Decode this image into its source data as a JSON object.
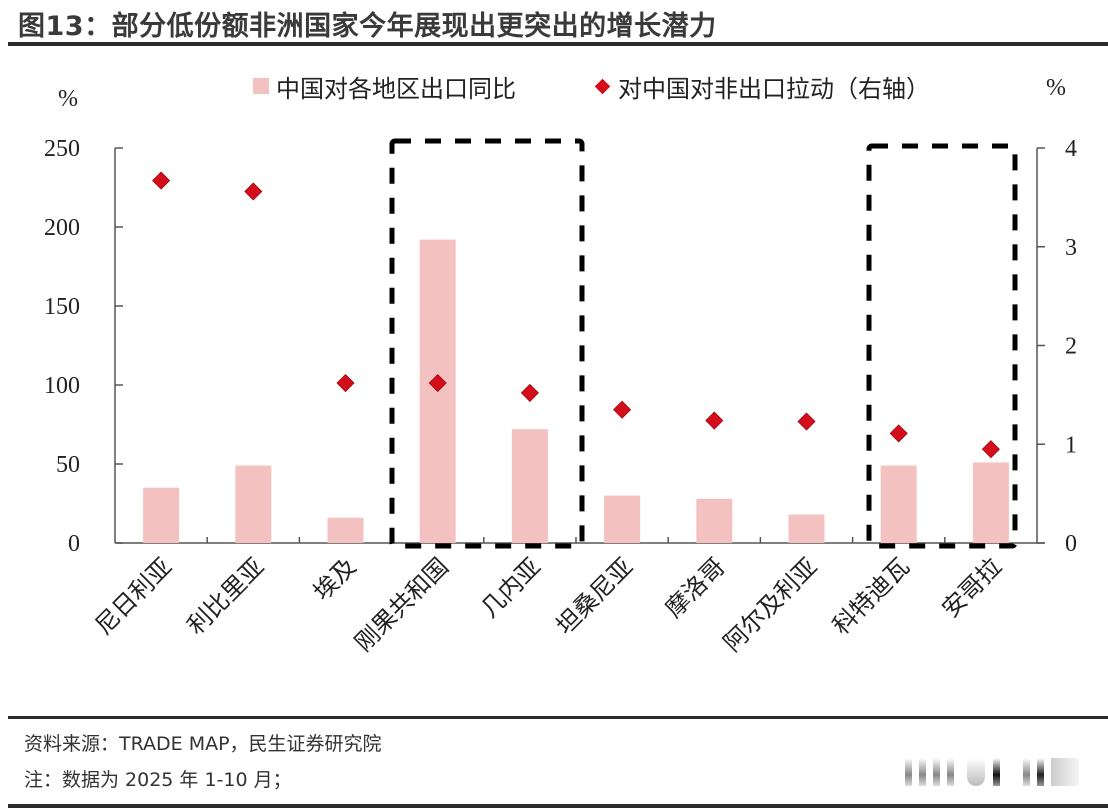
{
  "header": {
    "title": "图13：部分低份额非洲国家今年展现出更突出的增长潜力"
  },
  "legend": {
    "bar_label": "中国对各地区出口同比",
    "marker_label": "对中国对非出口拉动（右轴）",
    "bar_color": "#f4c1c1",
    "marker_color": "#d30e1a"
  },
  "axes": {
    "left_unit": "%",
    "right_unit": "%",
    "left_ticks": [
      "0",
      "50",
      "100",
      "150",
      "200",
      "250"
    ],
    "right_ticks": [
      "0",
      "1",
      "2",
      "3",
      "4"
    ]
  },
  "chart_data": {
    "type": "bar",
    "title": "部分低份额非洲国家今年展现出更突出的增长潜力",
    "categories": [
      "尼日利亚",
      "利比里亚",
      "埃及",
      "刚果共和国",
      "几内亚",
      "坦桑尼亚",
      "摩洛哥",
      "阿尔及利亚",
      "科特迪瓦",
      "安哥拉"
    ],
    "series": [
      {
        "name": "中国对各地区出口同比",
        "type": "bar",
        "axis": "left",
        "color": "#f4c1c1",
        "values": [
          35,
          49,
          16,
          192,
          72,
          30,
          28,
          18,
          49,
          51
        ]
      },
      {
        "name": "对中国对非出口拉动（右轴）",
        "type": "scatter",
        "marker": "diamond",
        "axis": "right",
        "color": "#d30e1a",
        "values": [
          3.67,
          3.56,
          1.62,
          1.62,
          1.52,
          1.35,
          1.24,
          1.23,
          1.11,
          0.95
        ]
      }
    ],
    "xlabel": "",
    "ylabel": "%",
    "ylabel_right": "%",
    "ylim": [
      0,
      250
    ],
    "ylim_right": [
      0,
      4
    ],
    "yticks": [
      0,
      50,
      100,
      150,
      200,
      250
    ],
    "yticks_right": [
      0,
      1,
      2,
      3,
      4
    ],
    "grid": false,
    "legend_position": "top",
    "annotations": [
      {
        "type": "dashed-box",
        "covers": [
          "刚果共和国",
          "几内亚"
        ]
      },
      {
        "type": "dashed-box",
        "covers": [
          "科特迪瓦",
          "安哥拉"
        ]
      }
    ]
  },
  "footer": {
    "source": "资料来源：TRADE MAP，民生证券研究院",
    "note": "注：数据为 2025 年 1-10 月；"
  }
}
